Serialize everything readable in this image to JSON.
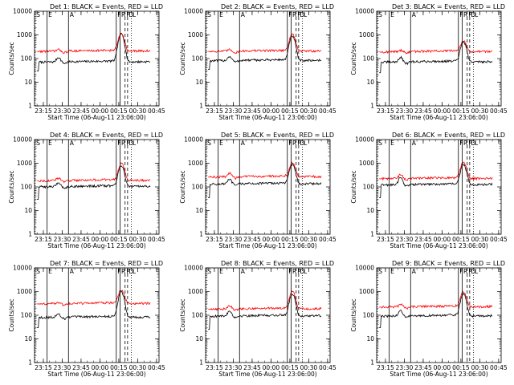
{
  "chart_data": [
    {
      "type": "line",
      "title": "Det 1: BLACK = Events, RED = LLD",
      "xlabel": "Start Time (06-Aug-11 23:06:00)",
      "ylabel": "Counts/sec",
      "x_tick_labels": [
        "23:15",
        "23:30",
        "23:45",
        "00:00",
        "00:15",
        "00:30",
        "00:45"
      ],
      "y_tick_labels": [
        "1",
        "10",
        "100",
        "1000",
        "10000"
      ],
      "yscale": "log",
      "ylim": [
        1,
        10000
      ],
      "time_window": [
        "23:08",
        "00:47"
      ],
      "grid": false,
      "interval_markers": [
        {
          "label": "S",
          "style": "dotted",
          "time": "23:08:30"
        },
        {
          "label": "E",
          "style": "solid",
          "time": "23:18"
        },
        {
          "label": "A",
          "style": "solid",
          "time": "23:35"
        },
        {
          "label": "F",
          "style": "solid",
          "time": "00:13"
        },
        {
          "label": "R",
          "style": "solid",
          "time": "00:16"
        },
        {
          "label": "P",
          "style": "dashed",
          "time": "00:20"
        },
        {
          "label": "D",
          "style": "dashed",
          "time": "00:22"
        },
        {
          "label": "L",
          "style": "dotted",
          "time": "00:25"
        }
      ],
      "series": [
        {
          "color": "#000000",
          "base": 70,
          "start": "23:10",
          "start_value": 30,
          "peak": 1100,
          "bump": 110
        },
        {
          "color": "#ff0000",
          "base": 200,
          "start": "23:10",
          "start_value": 200,
          "peak": 1200,
          "bump": 230
        }
      ]
    },
    {
      "type": "line",
      "title": "Det 2: BLACK = Events, RED = LLD",
      "xlabel": "Start Time (06-Aug-11 23:06:00)",
      "ylabel": "Counts/sec",
      "x_tick_labels": [
        "23:15",
        "23:30",
        "23:45",
        "00:00",
        "00:15",
        "00:30",
        "00:45"
      ],
      "y_tick_labels": [
        "1",
        "10",
        "100",
        "1000",
        "10000"
      ],
      "yscale": "log",
      "ylim": [
        1,
        10000
      ],
      "time_window": [
        "23:08",
        "00:47"
      ],
      "grid": false,
      "interval_markers": [
        {
          "label": "S",
          "style": "dotted",
          "time": "23:08:30"
        },
        {
          "label": "E",
          "style": "solid",
          "time": "23:18"
        },
        {
          "label": "A",
          "style": "solid",
          "time": "23:35"
        },
        {
          "label": "F",
          "style": "solid",
          "time": "00:13"
        },
        {
          "label": "R",
          "style": "solid",
          "time": "00:16"
        },
        {
          "label": "P",
          "style": "dashed",
          "time": "00:20"
        },
        {
          "label": "D",
          "style": "dashed",
          "time": "00:22"
        },
        {
          "label": "L",
          "style": "dotted",
          "time": "00:25"
        }
      ],
      "series": [
        {
          "color": "#000000",
          "base": 80,
          "start": "23:10",
          "start_value": 35,
          "peak": 900,
          "bump": 120
        },
        {
          "color": "#ff0000",
          "base": 200,
          "start": "23:10",
          "start_value": 200,
          "peak": 1100,
          "bump": 230
        }
      ]
    },
    {
      "type": "line",
      "title": "Det 3: BLACK = Events, RED = LLD",
      "xlabel": "Start Time (06-Aug-11 23:06:00)",
      "ylabel": "Counts/sec",
      "x_tick_labels": [
        "23:15",
        "23:30",
        "23:45",
        "00:00",
        "00:15",
        "00:30",
        "00:45"
      ],
      "y_tick_labels": [
        "1",
        "10",
        "100",
        "1000",
        "10000"
      ],
      "yscale": "log",
      "ylim": [
        1,
        10000
      ],
      "time_window": [
        "23:08",
        "00:47"
      ],
      "grid": false,
      "interval_markers": [
        {
          "label": "S",
          "style": "dotted",
          "time": "23:08:30"
        },
        {
          "label": "E",
          "style": "solid",
          "time": "23:18"
        },
        {
          "label": "A",
          "style": "solid",
          "time": "23:35"
        },
        {
          "label": "F",
          "style": "solid",
          "time": "00:13"
        },
        {
          "label": "R",
          "style": "solid",
          "time": "00:16"
        },
        {
          "label": "P",
          "style": "dashed",
          "time": "00:20"
        },
        {
          "label": "D",
          "style": "dashed",
          "time": "00:22"
        },
        {
          "label": "L",
          "style": "dotted",
          "time": "00:25"
        }
      ],
      "series": [
        {
          "color": "#000000",
          "base": 70,
          "start": "23:10",
          "start_value": 25,
          "peak": 500,
          "bump": 110
        },
        {
          "color": "#ff0000",
          "base": 190,
          "start": "23:10",
          "start_value": 190,
          "peak": 600,
          "bump": 220
        }
      ]
    },
    {
      "type": "line",
      "title": "Det 4: BLACK = Events, RED = LLD",
      "xlabel": "Start Time (06-Aug-11 23:06:00)",
      "ylabel": "Counts/sec",
      "x_tick_labels": [
        "23:15",
        "23:30",
        "23:45",
        "00:00",
        "00:15",
        "00:30",
        "00:45"
      ],
      "y_tick_labels": [
        "1",
        "10",
        "100",
        "1000",
        "10000"
      ],
      "yscale": "log",
      "ylim": [
        1,
        10000
      ],
      "time_window": [
        "23:08",
        "00:47"
      ],
      "grid": false,
      "interval_markers": [
        {
          "label": "S",
          "style": "dotted",
          "time": "23:08:30"
        },
        {
          "label": "E",
          "style": "solid",
          "time": "23:18"
        },
        {
          "label": "A",
          "style": "solid",
          "time": "23:35"
        },
        {
          "label": "F",
          "style": "solid",
          "time": "00:13"
        },
        {
          "label": "R",
          "style": "solid",
          "time": "00:16"
        },
        {
          "label": "P",
          "style": "dashed",
          "time": "00:20"
        },
        {
          "label": "D",
          "style": "dashed",
          "time": "00:22"
        },
        {
          "label": "L",
          "style": "dotted",
          "time": "00:25"
        }
      ],
      "series": [
        {
          "color": "#000000",
          "base": 100,
          "start": "23:10",
          "start_value": 30,
          "peak": 800,
          "bump": 150
        },
        {
          "color": "#ff0000",
          "base": 180,
          "start": "23:10",
          "start_value": 180,
          "peak": 1000,
          "bump": 230
        }
      ]
    },
    {
      "type": "line",
      "title": "Det 5: BLACK = Events, RED = LLD",
      "xlabel": "Start Time (06-Aug-11 23:06:00)",
      "ylabel": "Counts/sec",
      "x_tick_labels": [
        "23:15",
        "23:30",
        "23:45",
        "00:00",
        "00:15",
        "00:30",
        "00:45"
      ],
      "y_tick_labels": [
        "1",
        "10",
        "100",
        "1000",
        "10000"
      ],
      "yscale": "log",
      "ylim": [
        1,
        10000
      ],
      "time_window": [
        "23:08",
        "00:47"
      ],
      "grid": false,
      "interval_markers": [
        {
          "label": "S",
          "style": "dotted",
          "time": "23:08:30"
        },
        {
          "label": "E",
          "style": "solid",
          "time": "23:18"
        },
        {
          "label": "A",
          "style": "solid",
          "time": "23:35"
        },
        {
          "label": "F",
          "style": "solid",
          "time": "00:13"
        },
        {
          "label": "R",
          "style": "solid",
          "time": "00:16"
        },
        {
          "label": "P",
          "style": "dashed",
          "time": "00:20"
        },
        {
          "label": "D",
          "style": "dashed",
          "time": "00:22"
        },
        {
          "label": "L",
          "style": "dotted",
          "time": "00:25"
        }
      ],
      "series": [
        {
          "color": "#000000",
          "base": 130,
          "start": "23:10",
          "start_value": 35,
          "peak": 900,
          "bump": 200
        },
        {
          "color": "#ff0000",
          "base": 260,
          "start": "23:10",
          "start_value": 260,
          "peak": 1100,
          "bump": 380
        }
      ]
    },
    {
      "type": "line",
      "title": "Det 6: BLACK = Events, RED = LLD",
      "xlabel": "Start Time (06-Aug-11 23:06:00)",
      "ylabel": "Counts/sec",
      "x_tick_labels": [
        "23:15",
        "23:30",
        "23:45",
        "00:00",
        "00:15",
        "00:30",
        "00:45"
      ],
      "y_tick_labels": [
        "1",
        "10",
        "100",
        "1000",
        "10000"
      ],
      "yscale": "log",
      "ylim": [
        1,
        10000
      ],
      "time_window": [
        "23:08",
        "00:47"
      ],
      "grid": false,
      "interval_markers": [
        {
          "label": "S",
          "style": "dotted",
          "time": "23:08:30"
        },
        {
          "label": "E",
          "style": "solid",
          "time": "23:18"
        },
        {
          "label": "A",
          "style": "solid",
          "time": "23:35"
        },
        {
          "label": "F",
          "style": "solid",
          "time": "00:13"
        },
        {
          "label": "R",
          "style": "solid",
          "time": "00:16"
        },
        {
          "label": "P",
          "style": "dashed",
          "time": "00:20"
        },
        {
          "label": "D",
          "style": "dashed",
          "time": "00:22"
        },
        {
          "label": "L",
          "style": "dotted",
          "time": "00:25"
        }
      ],
      "series": [
        {
          "color": "#000000",
          "base": 120,
          "start": "23:10",
          "start_value": 35,
          "peak": 900,
          "bump": 250
        },
        {
          "color": "#ff0000",
          "base": 220,
          "start": "23:10",
          "start_value": 220,
          "peak": 1100,
          "bump": 330
        }
      ]
    },
    {
      "type": "line",
      "title": "Det 7: BLACK = Events, RED = LLD",
      "xlabel": "Start Time (06-Aug-11 23:06:00)",
      "ylabel": "Counts/sec",
      "x_tick_labels": [
        "23:15",
        "23:30",
        "23:45",
        "00:00",
        "00:15",
        "00:30",
        "00:45"
      ],
      "y_tick_labels": [
        "1",
        "10",
        "100",
        "1000",
        "10000"
      ],
      "yscale": "log",
      "ylim": [
        1,
        10000
      ],
      "time_window": [
        "23:08",
        "00:47"
      ],
      "grid": false,
      "interval_markers": [
        {
          "label": "S",
          "style": "dotted",
          "time": "23:08:30"
        },
        {
          "label": "E",
          "style": "solid",
          "time": "23:18"
        },
        {
          "label": "A",
          "style": "solid",
          "time": "23:35"
        },
        {
          "label": "F",
          "style": "solid",
          "time": "00:13"
        },
        {
          "label": "R",
          "style": "solid",
          "time": "00:16"
        },
        {
          "label": "P",
          "style": "dashed",
          "time": "00:20"
        },
        {
          "label": "D",
          "style": "dashed",
          "time": "00:22"
        },
        {
          "label": "L",
          "style": "dotted",
          "time": "00:25"
        }
      ],
      "series": [
        {
          "color": "#000000",
          "base": 80,
          "start": "23:10",
          "start_value": 30,
          "peak": 1000,
          "bump": 110
        },
        {
          "color": "#ff0000",
          "base": 300,
          "start": "23:10",
          "start_value": 300,
          "peak": 1200,
          "bump": 330
        }
      ]
    },
    {
      "type": "line",
      "title": "Det 8: BLACK = Events, RED = LLD",
      "xlabel": "Start Time (06-Aug-11 23:06:00)",
      "ylabel": "Counts/sec",
      "x_tick_labels": [
        "23:15",
        "23:30",
        "23:45",
        "00:00",
        "00:15",
        "00:30",
        "00:45"
      ],
      "y_tick_labels": [
        "1",
        "10",
        "100",
        "1000",
        "10000"
      ],
      "yscale": "log",
      "ylim": [
        1,
        10000
      ],
      "time_window": [
        "23:08",
        "00:47"
      ],
      "grid": false,
      "interval_markers": [
        {
          "label": "S",
          "style": "dotted",
          "time": "23:08:30"
        },
        {
          "label": "E",
          "style": "solid",
          "time": "23:18"
        },
        {
          "label": "A",
          "style": "solid",
          "time": "23:35"
        },
        {
          "label": "F",
          "style": "solid",
          "time": "00:13"
        },
        {
          "label": "R",
          "style": "solid",
          "time": "00:16"
        },
        {
          "label": "P",
          "style": "dashed",
          "time": "00:20"
        },
        {
          "label": "D",
          "style": "dashed",
          "time": "00:22"
        },
        {
          "label": "L",
          "style": "dotted",
          "time": "00:25"
        }
      ],
      "series": [
        {
          "color": "#000000",
          "base": 90,
          "start": "23:10",
          "start_value": 25,
          "peak": 800,
          "bump": 150
        },
        {
          "color": "#ff0000",
          "base": 180,
          "start": "23:10",
          "start_value": 180,
          "peak": 1000,
          "bump": 250
        }
      ]
    },
    {
      "type": "line",
      "title": "Det 9: BLACK = Events, RED = LLD",
      "xlabel": "Start Time (06-Aug-11 23:06:00)",
      "ylabel": "Counts/sec",
      "x_tick_labels": [
        "23:15",
        "23:30",
        "23:45",
        "00:00",
        "00:15",
        "00:30",
        "00:45"
      ],
      "y_tick_labels": [
        "1",
        "10",
        "100",
        "1000",
        "10000"
      ],
      "yscale": "log",
      "ylim": [
        1,
        10000
      ],
      "time_window": [
        "23:08",
        "00:47"
      ],
      "grid": false,
      "interval_markers": [
        {
          "label": "S",
          "style": "dotted",
          "time": "23:08:30"
        },
        {
          "label": "E",
          "style": "solid",
          "time": "23:18"
        },
        {
          "label": "A",
          "style": "solid",
          "time": "23:35"
        },
        {
          "label": "F",
          "style": "solid",
          "time": "00:13"
        },
        {
          "label": "R",
          "style": "solid",
          "time": "00:16"
        },
        {
          "label": "P",
          "style": "dashed",
          "time": "00:20"
        },
        {
          "label": "D",
          "style": "dashed",
          "time": "00:22"
        },
        {
          "label": "L",
          "style": "dotted",
          "time": "00:25"
        }
      ],
      "series": [
        {
          "color": "#000000",
          "base": 90,
          "start": "23:10",
          "start_value": 30,
          "peak": 800,
          "bump": 160
        },
        {
          "color": "#ff0000",
          "base": 220,
          "start": "23:10",
          "start_value": 220,
          "peak": 1000,
          "bump": 280
        }
      ]
    }
  ]
}
